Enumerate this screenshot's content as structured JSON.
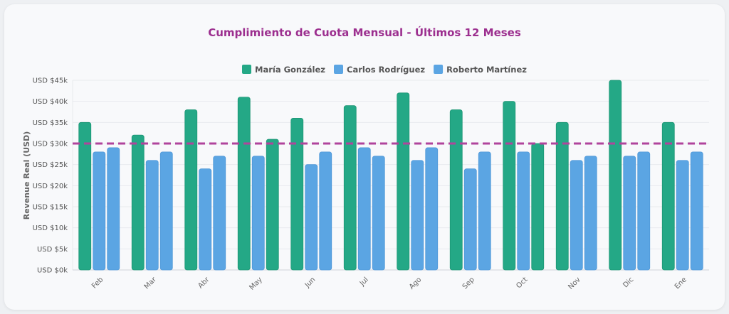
{
  "chart_data": {
    "type": "bar",
    "title": "Cumplimiento de Cuota Mensual - Últimos 12 Meses",
    "ylabel": "Revenue Real (USD)",
    "xlabel": "",
    "categories": [
      "Feb",
      "Mar",
      "Abr",
      "May",
      "Jun",
      "Jul",
      "Ago",
      "Sep",
      "Oct",
      "Nov",
      "Dic",
      "Ene"
    ],
    "series": [
      {
        "name": "María González",
        "values": [
          35000,
          32000,
          38000,
          41000,
          36000,
          39000,
          42000,
          38000,
          40000,
          35000,
          45000,
          35000
        ],
        "color": "#24a886"
      },
      {
        "name": "Carlos Rodríguez",
        "values": [
          28000,
          26000,
          24000,
          27000,
          25000,
          29000,
          26000,
          24000,
          28000,
          26000,
          27000,
          26000
        ],
        "color": "#5ba5e3"
      },
      {
        "name": "Roberto Martínez",
        "values": [
          29000,
          28000,
          27000,
          31000,
          28000,
          27000,
          29000,
          28000,
          30000,
          27000,
          28000,
          28000
        ],
        "color": "#5ba5e3"
      }
    ],
    "bar_colors": {
      "at_or_above_quota": "#24a886",
      "below_quota": "#5ba5e3"
    },
    "quota_line": {
      "value": 30000,
      "color": "#b0449c",
      "style": "dashed"
    },
    "ylim": [
      0,
      45000
    ],
    "yticks": [
      0,
      5000,
      10000,
      15000,
      20000,
      25000,
      30000,
      35000,
      40000,
      45000
    ],
    "ytick_labels": [
      "USD $0k",
      "USD $5k",
      "USD $10k",
      "USD $15k",
      "USD $20k",
      "USD $25k",
      "USD $30k",
      "USD $35k",
      "USD $40k",
      "USD $45k"
    ],
    "grid": true,
    "legend_position": "top"
  }
}
